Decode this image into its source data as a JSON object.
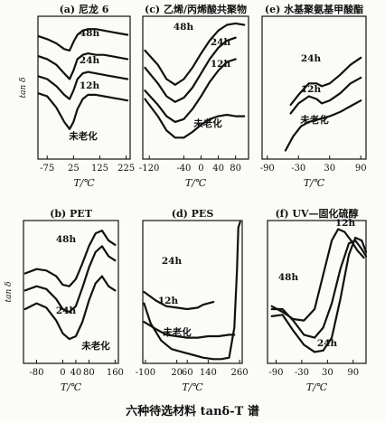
{
  "figure_caption": "六种待选材料 tanδ-T 谱",
  "chart_data": [
    {
      "type": "line",
      "title": "(a) 尼龙 6",
      "xlabel": "T/℃",
      "ylabel": "tan δ",
      "xticks": [
        "-75",
        "25",
        "125",
        "225"
      ],
      "xlim": [
        -110,
        240
      ],
      "ylim": [
        0,
        10
      ],
      "series": [
        {
          "name": "48h",
          "x": [
            -108,
            -75,
            -40,
            -10,
            10,
            25,
            40,
            60,
            80,
            110,
            140,
            170,
            200,
            230
          ],
          "y": [
            8.6,
            8.4,
            8.1,
            7.7,
            7.6,
            8.2,
            8.7,
            9.0,
            9.1,
            9.1,
            9.0,
            8.9,
            8.8,
            8.7
          ]
        },
        {
          "name": "24h",
          "x": [
            -108,
            -75,
            -40,
            -10,
            10,
            25,
            40,
            60,
            80,
            110,
            140,
            170,
            200,
            230
          ],
          "y": [
            7.2,
            7.0,
            6.6,
            6.0,
            5.6,
            6.2,
            7.0,
            7.3,
            7.4,
            7.3,
            7.3,
            7.2,
            7.1,
            7.0
          ]
        },
        {
          "name": "12h",
          "x": [
            -108,
            -75,
            -40,
            -10,
            10,
            25,
            40,
            60,
            80,
            110,
            140,
            170,
            200,
            230
          ],
          "y": [
            5.8,
            5.6,
            5.1,
            4.5,
            4.2,
            4.8,
            5.6,
            6.0,
            6.1,
            6.0,
            5.9,
            5.8,
            5.7,
            5.6
          ]
        },
        {
          "name": "未老化",
          "x": [
            -108,
            -75,
            -40,
            -10,
            10,
            25,
            40,
            60,
            80,
            110,
            140,
            170,
            200,
            230
          ],
          "y": [
            4.6,
            4.4,
            3.6,
            2.6,
            2.1,
            2.6,
            3.5,
            4.2,
            4.5,
            4.5,
            4.4,
            4.3,
            4.2,
            4.1
          ]
        }
      ]
    },
    {
      "type": "line",
      "title": "(c) 乙烯/丙烯酸共聚物",
      "xlabel": "T/℃",
      "ylabel": "",
      "xticks": [
        "-120",
        "-40",
        "0",
        "40",
        "80"
      ],
      "xlim": [
        -135,
        110
      ],
      "ylim": [
        0,
        10
      ],
      "series": [
        {
          "name": "48h",
          "x": [
            -130,
            -100,
            -80,
            -60,
            -40,
            -20,
            0,
            20,
            40,
            60,
            80,
            100
          ],
          "y": [
            7.6,
            6.6,
            5.6,
            5.2,
            5.6,
            6.4,
            7.4,
            8.3,
            9.0,
            9.4,
            9.5,
            9.4
          ]
        },
        {
          "name": "24h",
          "x": [
            -130,
            -100,
            -80,
            -60,
            -40,
            -20,
            0,
            20,
            40,
            60,
            80
          ],
          "y": [
            6.4,
            5.3,
            4.4,
            4.0,
            4.3,
            5.0,
            6.0,
            7.0,
            7.8,
            8.3,
            8.5
          ]
        },
        {
          "name": "12h",
          "x": [
            -130,
            -100,
            -80,
            -60,
            -40,
            -20,
            0,
            20,
            40,
            60,
            80
          ],
          "y": [
            4.8,
            3.8,
            3.0,
            2.6,
            2.8,
            3.5,
            4.4,
            5.4,
            6.2,
            6.8,
            7.0
          ]
        },
        {
          "name": "未老化",
          "x": [
            -130,
            -100,
            -80,
            -60,
            -40,
            -20,
            0,
            20,
            40,
            60,
            80,
            100
          ],
          "y": [
            4.2,
            3.0,
            2.0,
            1.5,
            1.5,
            1.9,
            2.4,
            2.8,
            3.0,
            3.1,
            3.0,
            3.0
          ]
        }
      ]
    },
    {
      "type": "line",
      "title": "(e) 水基聚氨基甲酸酯",
      "xlabel": "T/℃",
      "ylabel": "",
      "xticks": [
        "-90",
        "-30",
        "30",
        "90"
      ],
      "xlim": [
        -100,
        100
      ],
      "ylim": [
        0,
        10
      ],
      "series": [
        {
          "name": "24h",
          "x": [
            -45,
            -30,
            -10,
            5,
            15,
            30,
            50,
            70,
            90
          ],
          "y": [
            3.8,
            4.5,
            5.3,
            5.3,
            5.1,
            5.3,
            5.9,
            6.6,
            7.1
          ]
        },
        {
          "name": "12h",
          "x": [
            -45,
            -30,
            -10,
            5,
            15,
            30,
            50,
            70,
            90
          ],
          "y": [
            3.2,
            3.9,
            4.4,
            4.2,
            3.9,
            4.1,
            4.6,
            5.3,
            5.7
          ]
        },
        {
          "name": "未老化",
          "x": [
            -55,
            -40,
            -25,
            -10,
            10,
            30,
            50,
            70,
            90
          ],
          "y": [
            0.6,
            1.6,
            2.3,
            2.6,
            2.8,
            3.0,
            3.3,
            3.7,
            4.1
          ]
        }
      ]
    },
    {
      "type": "line",
      "title": "(b) PET",
      "xlabel": "T/℃",
      "ylabel": "tan δ",
      "xticks": [
        "-80",
        "0",
        "40",
        "80",
        "160"
      ],
      "xlim": [
        -120,
        170
      ],
      "ylim": [
        0,
        10
      ],
      "series": [
        {
          "name": "48h",
          "x": [
            -115,
            -80,
            -50,
            -20,
            0,
            20,
            40,
            60,
            80,
            100,
            120,
            140,
            160
          ],
          "y": [
            6.3,
            6.6,
            6.5,
            6.1,
            5.5,
            5.4,
            5.9,
            7.0,
            8.2,
            9.1,
            9.3,
            8.6,
            8.3
          ]
        },
        {
          "name": "24h",
          "x": [
            -115,
            -80,
            -50,
            -20,
            0,
            20,
            40,
            60,
            80,
            100,
            120,
            140,
            160
          ],
          "y": [
            5.1,
            5.4,
            5.2,
            4.5,
            3.8,
            3.6,
            4.0,
            5.3,
            6.7,
            7.8,
            8.2,
            7.5,
            7.2
          ]
        },
        {
          "name": "未老化",
          "x": [
            -115,
            -80,
            -50,
            -20,
            0,
            20,
            40,
            60,
            80,
            100,
            120,
            140,
            160
          ],
          "y": [
            3.8,
            4.2,
            3.9,
            3.0,
            2.1,
            1.7,
            1.9,
            2.9,
            4.4,
            5.6,
            6.1,
            5.4,
            5.1
          ]
        }
      ]
    },
    {
      "type": "line",
      "title": "(d) PES",
      "xlabel": "T/℃",
      "ylabel": "",
      "xticks": [
        "-100",
        "20",
        "60",
        "140",
        "260"
      ],
      "xlim": [
        -110,
        270
      ],
      "ylim": [
        0,
        10
      ],
      "series": [
        {
          "name": "24h",
          "x": [
            -105,
            -60,
            -20,
            20,
            60,
            100,
            120,
            140,
            160
          ],
          "y": [
            5.0,
            4.4,
            4.0,
            3.9,
            3.8,
            3.9,
            4.1,
            4.2,
            4.3
          ]
        },
        {
          "name": "12h",
          "x": [
            -105,
            -60,
            -20,
            20,
            60,
            100,
            140,
            180,
            220,
            240
          ],
          "y": [
            2.9,
            2.4,
            2.0,
            1.9,
            1.8,
            1.8,
            1.9,
            1.9,
            2.0,
            2.0
          ]
        },
        {
          "name": "未老化",
          "x": [
            -105,
            -80,
            -40,
            0,
            40,
            80,
            120,
            160,
            190,
            220,
            240,
            250,
            255,
            262
          ],
          "y": [
            4.2,
            2.8,
            1.6,
            1.0,
            0.8,
            0.6,
            0.4,
            0.3,
            0.3,
            0.4,
            2.5,
            6.5,
            9.5,
            9.9
          ]
        }
      ]
    },
    {
      "type": "line",
      "title": "(f) UV—固化硫醇",
      "xlabel": "T/℃",
      "ylabel": "",
      "xticks": [
        "-90",
        "-30",
        "30",
        "90"
      ],
      "xlim": [
        -110,
        120
      ],
      "ylim": [
        0,
        10
      ],
      "series": [
        {
          "name": "12h",
          "x": [
            -100,
            -75,
            -50,
            -25,
            0,
            20,
            40,
            55,
            70,
            85,
            100,
            115
          ],
          "y": [
            4.0,
            3.6,
            3.1,
            3.0,
            3.8,
            6.2,
            8.6,
            9.4,
            9.2,
            8.6,
            7.9,
            7.4
          ]
        },
        {
          "name": "48h",
          "x": [
            -100,
            -75,
            -50,
            -25,
            0,
            20,
            40,
            60,
            80,
            95,
            110,
            120
          ],
          "y": [
            3.8,
            3.8,
            3.0,
            2.0,
            1.8,
            2.5,
            4.2,
            6.6,
            8.4,
            8.6,
            8.0,
            7.5
          ]
        },
        {
          "name": "24h",
          "x": [
            -100,
            -75,
            -50,
            -25,
            0,
            20,
            40,
            60,
            80,
            95,
            110,
            120
          ],
          "y": [
            3.3,
            3.4,
            2.3,
            1.3,
            0.8,
            0.9,
            1.8,
            4.5,
            7.6,
            8.8,
            8.6,
            7.8
          ]
        }
      ]
    }
  ]
}
